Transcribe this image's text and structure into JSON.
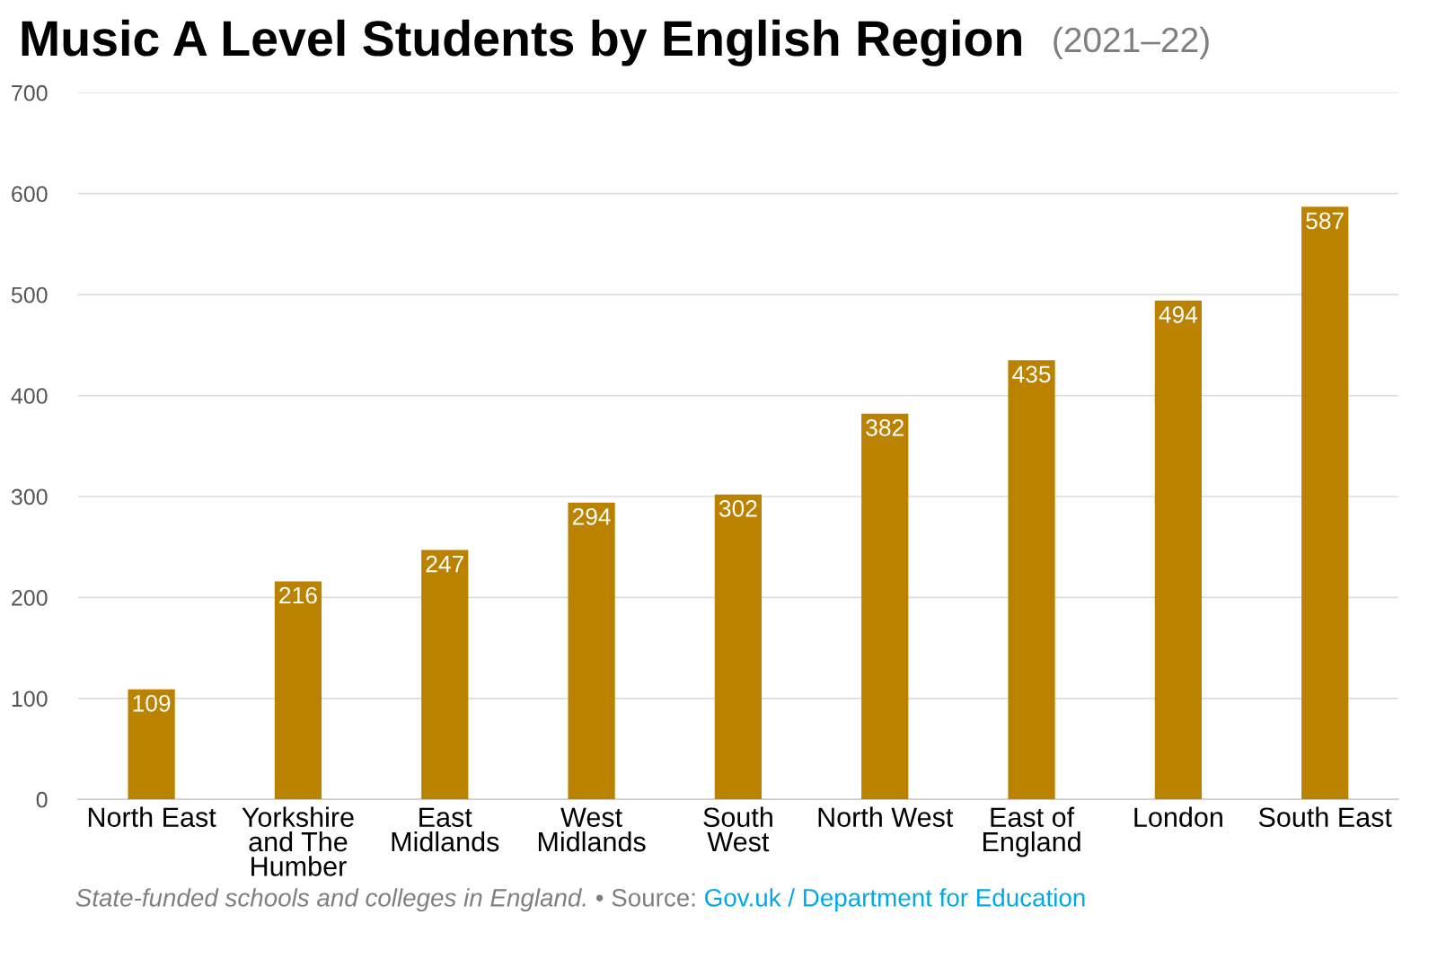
{
  "chart_data": {
    "type": "bar",
    "title": "Music A Level Students by English Region",
    "subtitle": "(2021–22)",
    "categories": [
      "North East",
      "Yorkshire\nand The\nHumber",
      "East\nMidlands",
      "West\nMidlands",
      "South\nWest",
      "North West",
      "East of\nEngland",
      "London",
      "South East"
    ],
    "values": [
      109,
      216,
      247,
      294,
      302,
      382,
      435,
      494,
      587
    ],
    "color": "#bb8200",
    "ylim": [
      0,
      700
    ],
    "yticks": [
      0,
      100,
      200,
      300,
      400,
      500,
      600,
      700
    ],
    "grid": "y",
    "data_labels": true,
    "annotations": [
      "State-funded schools and colleges in England.",
      " • Source: ",
      "Gov.uk / Department for Education"
    ]
  }
}
